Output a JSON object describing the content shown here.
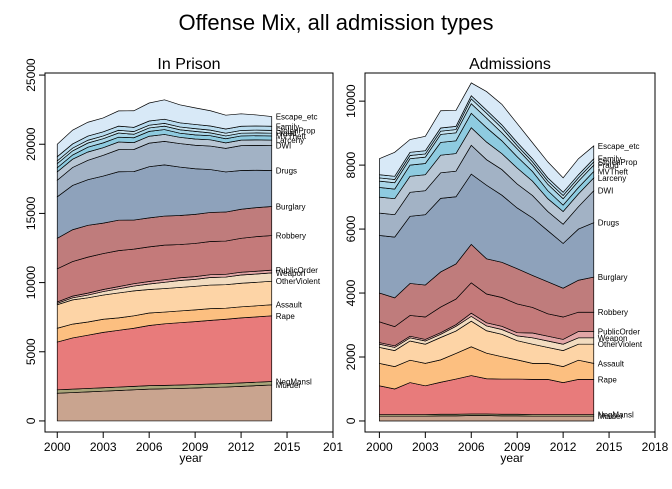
{
  "title": "Offense Mix, all admission types",
  "chart_data": [
    {
      "type": "stacked_area",
      "title": "In Prison",
      "xlabel": "year",
      "x": [
        2000,
        2001,
        2002,
        2003,
        2004,
        2005,
        2006,
        2007,
        2008,
        2009,
        2010,
        2011,
        2012,
        2013,
        2014
      ],
      "xlim": [
        1999.2,
        2018
      ],
      "ylim": [
        -800,
        25150
      ],
      "xticks": [
        2000,
        2003,
        2006,
        2009,
        2012,
        2015,
        {
          "value": 2018,
          "label": "201"
        }
      ],
      "yticks": [
        0,
        5000,
        10000,
        15000,
        20000,
        25000
      ],
      "series": [
        {
          "name": "Murder",
          "color": "#c9a48f",
          "values": [
            2000,
            2050,
            2100,
            2150,
            2200,
            2250,
            2300,
            2320,
            2350,
            2380,
            2420,
            2450,
            2500,
            2550,
            2600
          ]
        },
        {
          "name": "NegMansl",
          "color": "#a9a57a",
          "values": [
            250,
            250,
            250,
            250,
            250,
            250,
            250,
            250,
            250,
            250,
            250,
            250,
            250,
            250,
            250
          ]
        },
        {
          "name": "Rape",
          "color": "#e87b7b",
          "values": [
            3450,
            3700,
            3850,
            4000,
            4100,
            4200,
            4350,
            4450,
            4500,
            4550,
            4600,
            4650,
            4700,
            4720,
            4750
          ]
        },
        {
          "name": "Assault",
          "color": "#fcbf80",
          "values": [
            1000,
            1000,
            950,
            950,
            900,
            900,
            900,
            850,
            850,
            850,
            850,
            800,
            800,
            800,
            800
          ]
        },
        {
          "name": "OtherViolent",
          "color": "#fdd4a6",
          "values": [
            1700,
            1750,
            1750,
            1750,
            1800,
            1800,
            1700,
            1700,
            1700,
            1700,
            1700,
            1700,
            1700,
            1700,
            1700
          ]
        },
        {
          "name": "Weapon",
          "color": "#f2dcc0",
          "values": [
            100,
            150,
            200,
            250,
            300,
            350,
            400,
            450,
            500,
            500,
            550,
            550,
            600,
            600,
            600
          ]
        },
        {
          "name": "PublicOrder",
          "color": "#e2a6a6",
          "values": [
            100,
            120,
            140,
            150,
            160,
            170,
            180,
            190,
            200,
            200,
            200,
            200,
            200,
            200,
            200
          ]
        },
        {
          "name": "Robbery",
          "color": "#c47a7a",
          "values": [
            2400,
            2500,
            2600,
            2600,
            2600,
            2500,
            2500,
            2500,
            2400,
            2400,
            2400,
            2400,
            2450,
            2500,
            2500
          ]
        },
        {
          "name": "Burglary",
          "color": "#bf7c7c",
          "values": [
            2200,
            2300,
            2300,
            2200,
            2200,
            2100,
            2100,
            2100,
            2100,
            2100,
            2100,
            2100,
            2100,
            2100,
            2100
          ]
        },
        {
          "name": "Drugs",
          "color": "#8ea2bb",
          "values": [
            3000,
            3200,
            3300,
            3400,
            3500,
            3500,
            3700,
            3700,
            3500,
            3300,
            3100,
            2900,
            2800,
            2700,
            2600
          ]
        },
        {
          "name": "DWI",
          "color": "#a2b2c5",
          "values": [
            1200,
            1300,
            1400,
            1500,
            1600,
            1600,
            1700,
            1700,
            1700,
            1700,
            1700,
            1700,
            1800,
            1800,
            1800
          ]
        },
        {
          "name": "Larceny",
          "color": "#b8c6d4",
          "values": [
            600,
            600,
            600,
            550,
            550,
            500,
            500,
            500,
            450,
            450,
            450,
            400,
            400,
            400,
            400
          ]
        },
        {
          "name": "MVTheft",
          "color": "#8ecbe0",
          "values": [
            300,
            300,
            350,
            350,
            350,
            350,
            350,
            350,
            300,
            300,
            300,
            300,
            300,
            300,
            300
          ]
        },
        {
          "name": "Fraud",
          "color": "#a9d6e8",
          "values": [
            300,
            300,
            300,
            300,
            300,
            250,
            250,
            250,
            250,
            250,
            200,
            200,
            200,
            200,
            200
          ]
        },
        {
          "name": "StolenProp",
          "color": "#c6e3f0",
          "values": [
            200,
            200,
            200,
            200,
            200,
            200,
            200,
            200,
            200,
            200,
            200,
            200,
            200,
            200,
            200
          ]
        },
        {
          "name": "Family",
          "color": "#b9dcef",
          "values": [
            300,
            300,
            300,
            300,
            300,
            300,
            300,
            300,
            300,
            300,
            300,
            300,
            300,
            300,
            300
          ]
        },
        {
          "name": "Escape_etc",
          "color": "#d8e9f7",
          "values": [
            900,
            1000,
            1000,
            1000,
            1100,
            1200,
            1300,
            1400,
            1300,
            1200,
            1100,
            1000,
            900,
            800,
            700
          ]
        }
      ]
    },
    {
      "type": "stacked_area",
      "title": "Admissions",
      "xlabel": "year",
      "x": [
        2000,
        2001,
        2002,
        2003,
        2004,
        2005,
        2006,
        2007,
        2008,
        2009,
        2010,
        2011,
        2012,
        2013,
        2014
      ],
      "xlim": [
        1999.06,
        2018
      ],
      "ylim": [
        -345,
        10880
      ],
      "xticks": [
        2000,
        2003,
        2006,
        2009,
        2012,
        2015,
        2018
      ],
      "yticks": [
        0,
        2000,
        4000,
        6000,
        8000,
        10000
      ],
      "series": [
        {
          "name": "Murder",
          "color": "#c9a48f",
          "values": [
            150,
            150,
            150,
            150,
            160,
            160,
            170,
            170,
            160,
            160,
            150,
            150,
            150,
            150,
            150
          ]
        },
        {
          "name": "NegMansl",
          "color": "#a9a57a",
          "values": [
            50,
            50,
            50,
            50,
            50,
            50,
            50,
            50,
            50,
            50,
            50,
            50,
            50,
            50,
            50
          ]
        },
        {
          "name": "Rape",
          "color": "#e87b7b",
          "values": [
            900,
            800,
            1000,
            900,
            1000,
            1100,
            1200,
            1100,
            1100,
            1100,
            1100,
            1100,
            1000,
            1100,
            1100
          ]
        },
        {
          "name": "Assault",
          "color": "#fcbf80",
          "values": [
            700,
            700,
            700,
            700,
            700,
            800,
            900,
            800,
            700,
            600,
            500,
            500,
            500,
            600,
            500
          ]
        },
        {
          "name": "OtherViolent",
          "color": "#fdd4a6",
          "values": [
            500,
            500,
            600,
            600,
            700,
            700,
            800,
            700,
            700,
            600,
            600,
            500,
            500,
            500,
            600
          ]
        },
        {
          "name": "Weapon",
          "color": "#f2dcc0",
          "values": [
            100,
            100,
            100,
            100,
            100,
            150,
            150,
            150,
            150,
            150,
            200,
            200,
            200,
            200,
            200
          ]
        },
        {
          "name": "PublicOrder",
          "color": "#e2a6a6",
          "values": [
            50,
            50,
            50,
            50,
            50,
            50,
            100,
            100,
            100,
            100,
            150,
            150,
            150,
            200,
            200
          ]
        },
        {
          "name": "Robbery",
          "color": "#c47a7a",
          "values": [
            650,
            600,
            650,
            700,
            800,
            800,
            950,
            900,
            900,
            900,
            800,
            700,
            700,
            600,
            600
          ]
        },
        {
          "name": "Burglary",
          "color": "#bf7c7c",
          "values": [
            900,
            900,
            1000,
            1000,
            1100,
            1100,
            1200,
            1100,
            1100,
            1100,
            1000,
            1000,
            900,
            1000,
            1100
          ]
        },
        {
          "name": "Drugs",
          "color": "#8ea2bb",
          "values": [
            1800,
            1900,
            2100,
            2200,
            2300,
            2100,
            2200,
            2300,
            2100,
            1900,
            1800,
            1600,
            1400,
            1600,
            1700
          ]
        },
        {
          "name": "DWI",
          "color": "#a2b2c5",
          "values": [
            700,
            700,
            750,
            750,
            800,
            800,
            900,
            800,
            800,
            750,
            700,
            600,
            600,
            700,
            1000
          ]
        },
        {
          "name": "Larceny",
          "color": "#b8c6d4",
          "values": [
            500,
            500,
            500,
            500,
            550,
            550,
            550,
            550,
            500,
            500,
            450,
            400,
            400,
            400,
            400
          ]
        },
        {
          "name": "MVTheft",
          "color": "#8ecbe0",
          "values": [
            300,
            300,
            350,
            350,
            400,
            400,
            450,
            450,
            400,
            350,
            300,
            250,
            200,
            200,
            200
          ]
        },
        {
          "name": "Fraud",
          "color": "#a9d6e8",
          "values": [
            200,
            200,
            200,
            200,
            250,
            250,
            300,
            300,
            250,
            250,
            200,
            200,
            200,
            200,
            200
          ]
        },
        {
          "name": "StolenProp",
          "color": "#c6e3f0",
          "values": [
            100,
            100,
            100,
            100,
            100,
            100,
            150,
            150,
            150,
            100,
            100,
            100,
            100,
            100,
            100
          ]
        },
        {
          "name": "Family",
          "color": "#b9dcef",
          "values": [
            100,
            100,
            100,
            100,
            100,
            100,
            100,
            100,
            100,
            100,
            100,
            100,
            100,
            100,
            100
          ]
        },
        {
          "name": "Escape_etc",
          "color": "#d8e9f7",
          "values": [
            500,
            750,
            400,
            450,
            540,
            500,
            400,
            580,
            640,
            590,
            500,
            500,
            450,
            500,
            400
          ]
        }
      ]
    }
  ]
}
